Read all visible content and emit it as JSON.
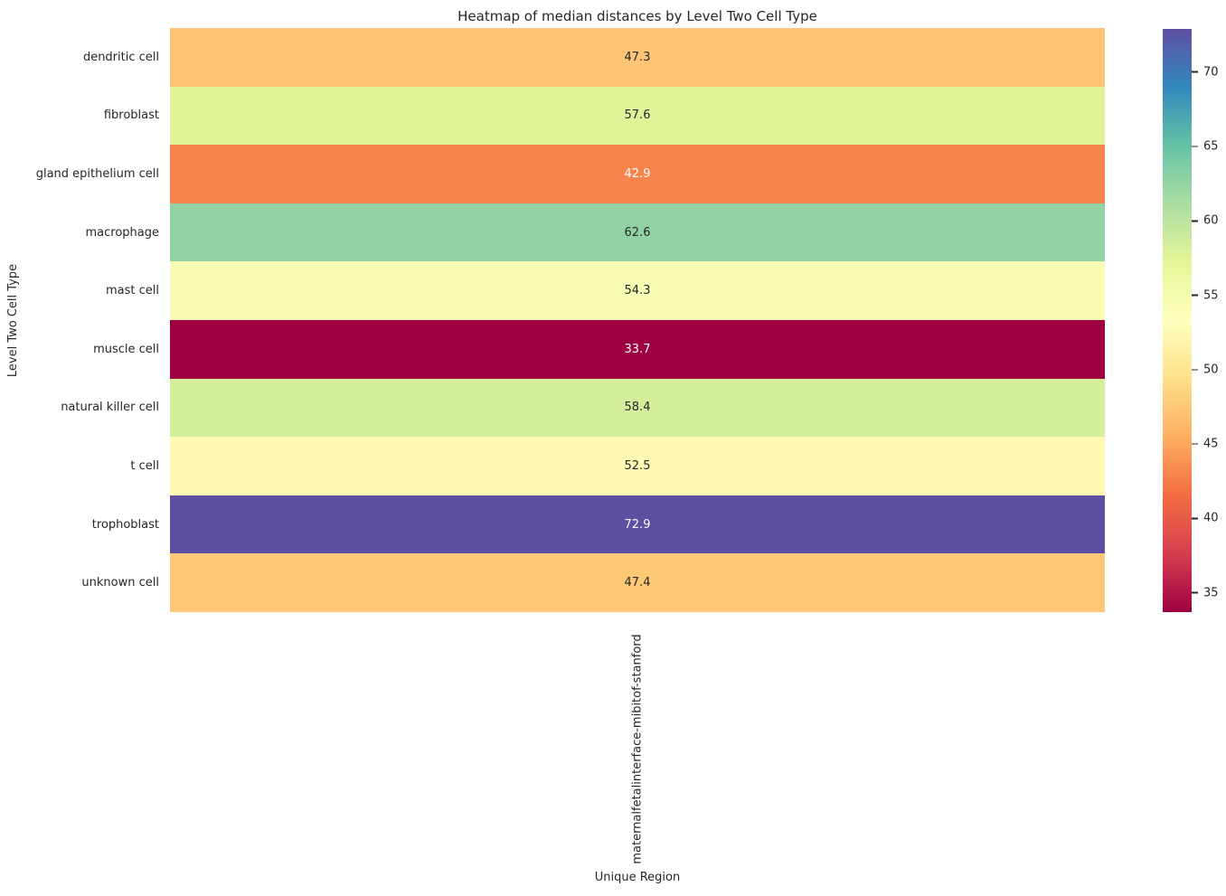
{
  "figure": {
    "background": "#ffffff"
  },
  "chart_data": {
    "type": "heatmap",
    "title": "Heatmap of median distances by Level Two Cell Type",
    "xlabel": "Unique Region",
    "ylabel": "Level Two Cell Type",
    "columns": [
      "maternalfetalinterface-mibitof-stanford"
    ],
    "rows": [
      "dendritic cell",
      "fibroblast",
      "gland epithelium cell",
      "macrophage",
      "mast cell",
      "muscle cell",
      "natural killer cell",
      "t cell",
      "trophoblast",
      "unknown cell"
    ],
    "values": [
      [
        47.3
      ],
      [
        57.6
      ],
      [
        42.9
      ],
      [
        62.6
      ],
      [
        54.3
      ],
      [
        33.7
      ],
      [
        58.4
      ],
      [
        52.5
      ],
      [
        72.9
      ],
      [
        47.4
      ]
    ],
    "cell_colors": [
      [
        "#fdc575"
      ],
      [
        "#e0f399"
      ],
      [
        "#f7844d"
      ],
      [
        "#91d3a4"
      ],
      [
        "#f9fcb5"
      ],
      [
        "#9e0142"
      ],
      [
        "#d4ee9c"
      ],
      [
        "#fff9b4"
      ],
      [
        "#5e4fa2"
      ],
      [
        "#fdc776"
      ]
    ],
    "annotation_text_colors": [
      [
        "dark"
      ],
      [
        "dark"
      ],
      [
        "white"
      ],
      [
        "dark"
      ],
      [
        "dark"
      ],
      [
        "white"
      ],
      [
        "dark"
      ],
      [
        "dark"
      ],
      [
        "white"
      ],
      [
        "dark"
      ]
    ],
    "colormap": "Spectral",
    "grid": false,
    "legend_position": "right-colorbar",
    "colorbar": {
      "min": 33.7,
      "max": 72.9,
      "ticks": [
        70,
        65,
        60,
        55,
        50,
        45,
        40,
        35
      ],
      "gradient_top_to_bottom": [
        "#5e4fa2",
        "#3288bd",
        "#66c2a5",
        "#abdda4",
        "#e6f598",
        "#ffffbf",
        "#fee08b",
        "#fdae61",
        "#f46d43",
        "#d53e4f",
        "#9e0142"
      ]
    }
  },
  "colors": {
    "text": "#262626",
    "annotation_light": "#ffffff",
    "annotation_dark": "#262626",
    "background": "#ffffff"
  }
}
